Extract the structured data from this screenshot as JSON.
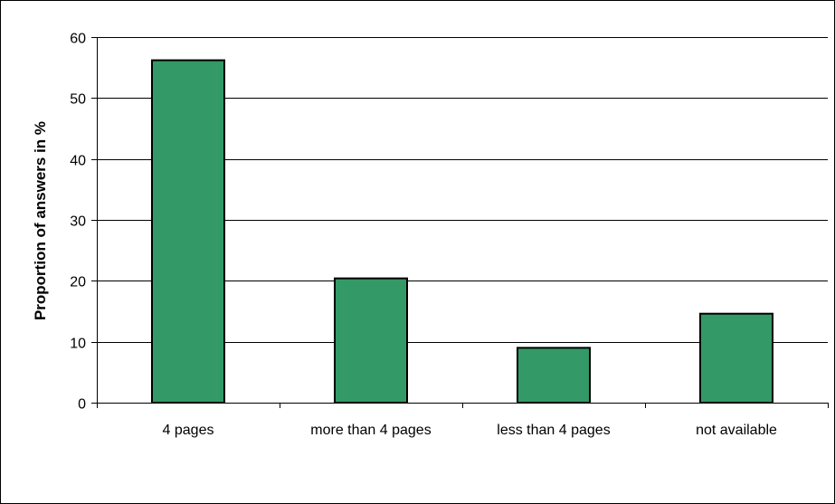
{
  "chart_data": {
    "type": "bar",
    "title": "",
    "xlabel": "",
    "ylabel": "Proportion of answers in %",
    "categories": [
      "4 pages",
      "more than 4 pages",
      "less than 4 pages",
      "not available"
    ],
    "values": [
      56.2,
      20.4,
      9.0,
      14.6
    ],
    "ylim": [
      0,
      60
    ],
    "yticks": [
      0,
      10,
      20,
      30,
      40,
      50,
      60
    ],
    "grid": true,
    "legend": "none",
    "colors": {
      "bar_fill": "#339966",
      "bar_stroke": "#000000",
      "grid": "#000000",
      "axis": "#000000"
    }
  }
}
